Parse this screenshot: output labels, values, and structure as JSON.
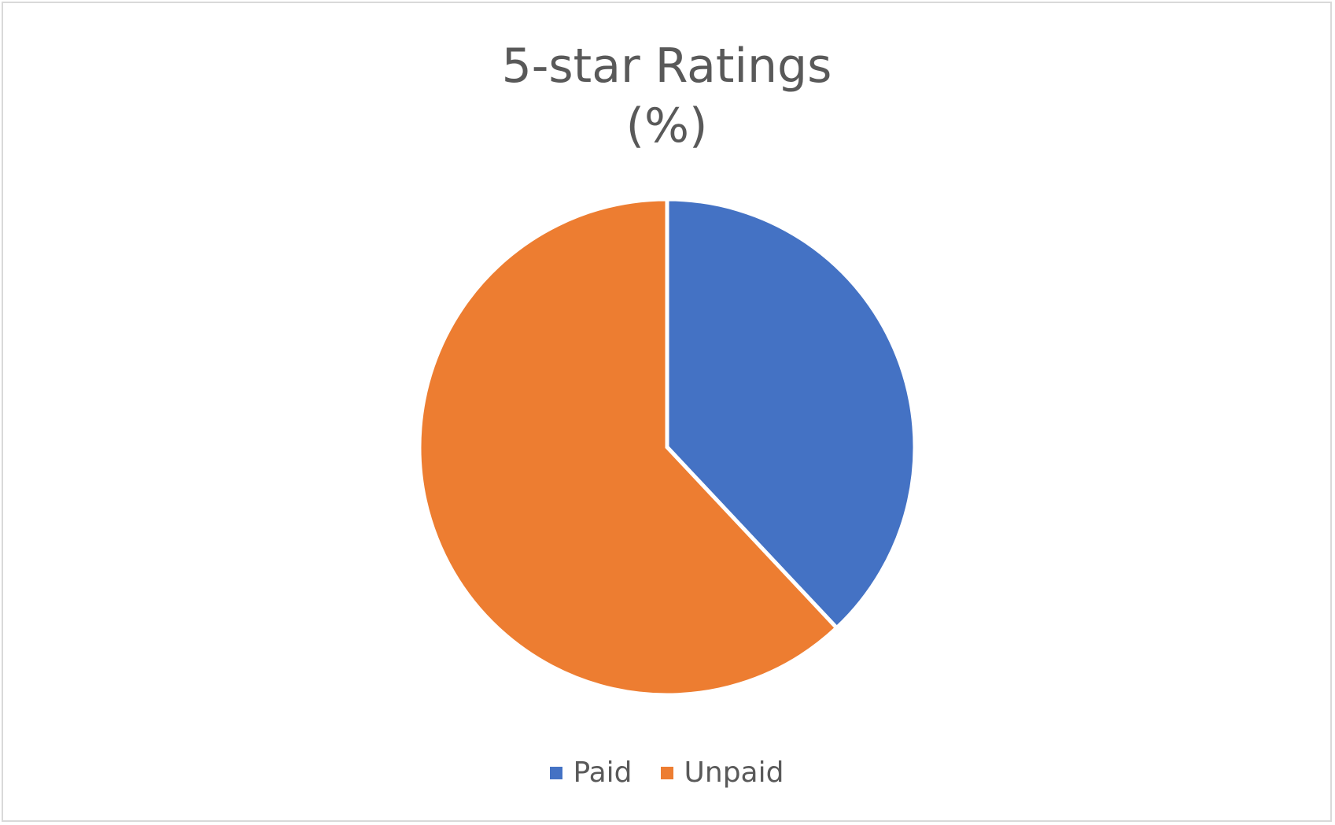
{
  "chart_data": {
    "type": "pie",
    "title": "5-star Ratings\n(%)",
    "categories": [
      "Paid",
      "Unpaid"
    ],
    "values": [
      38,
      62
    ],
    "colors": [
      "#4472C4",
      "#ED7D31"
    ],
    "start_angle_deg": 0,
    "direction": "clockwise",
    "legend_position": "bottom",
    "data_labels": false
  }
}
